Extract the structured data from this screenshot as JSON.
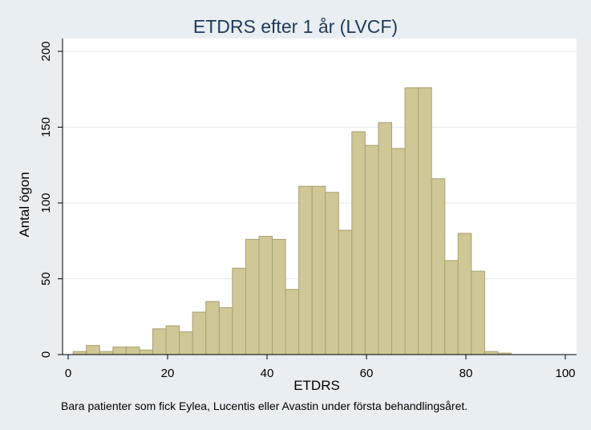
{
  "chart_data": {
    "type": "bar",
    "title": "ETDRS efter 1 år (LVCF)",
    "xlabel": "ETDRS",
    "ylabel": "Antal ögon",
    "note": "Bara patienter som fick Eylea, Lucentis eller Avastin under första behandlingsåret.",
    "xlim": [
      0,
      100
    ],
    "ylim": [
      0,
      200
    ],
    "xticks": [
      "0",
      "20",
      "40",
      "60",
      "80",
      "100"
    ],
    "yticks": [
      "0",
      "50",
      "100",
      "150",
      "200"
    ],
    "grid": true,
    "bin_width": 2.67,
    "bin_start": 1,
    "values": [
      2,
      6,
      2,
      5,
      5,
      3,
      17,
      19,
      15,
      28,
      35,
      31,
      57,
      76,
      78,
      76,
      43,
      111,
      111,
      107,
      82,
      147,
      138,
      153,
      136,
      176,
      176,
      116,
      62,
      80,
      55,
      2,
      1
    ],
    "bar_color": "#cfc795",
    "bar_stroke": "#a8a070",
    "plot_bg": "#ffffff",
    "page_bg": "#e9eef2"
  }
}
